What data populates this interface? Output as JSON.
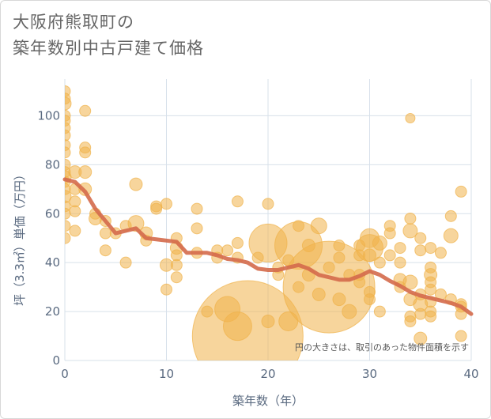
{
  "chart_data": {
    "type": "scatter",
    "title_lines": [
      "大阪府熊取町の",
      "築年数別中古戸建て価格"
    ],
    "xlabel": "築年数（年）",
    "ylabel": "坪（3.3㎡）単価（万円）",
    "xlim": [
      0,
      40
    ],
    "ylim": [
      0,
      115
    ],
    "xticks": [
      0,
      10,
      20,
      30,
      40
    ],
    "yticks": [
      0,
      20,
      40,
      60,
      80,
      100
    ],
    "grid": true,
    "annotation": "円の大きさは、取引のあった物件面積を示す",
    "colors": {
      "bubble": "#f0b24a",
      "trend": "#d46a4b",
      "grid": "#d7e0ea"
    },
    "bubbles": [
      {
        "x": 0,
        "y": 110,
        "s": 7
      },
      {
        "x": 0,
        "y": 107,
        "s": 7
      },
      {
        "x": 0,
        "y": 105,
        "s": 8
      },
      {
        "x": 0,
        "y": 100,
        "s": 7
      },
      {
        "x": 0,
        "y": 98,
        "s": 7
      },
      {
        "x": 0,
        "y": 95,
        "s": 7
      },
      {
        "x": 0,
        "y": 92,
        "s": 7
      },
      {
        "x": 0,
        "y": 88,
        "s": 7
      },
      {
        "x": 0,
        "y": 85,
        "s": 7
      },
      {
        "x": 0,
        "y": 80,
        "s": 7
      },
      {
        "x": 0,
        "y": 77,
        "s": 7
      },
      {
        "x": 0,
        "y": 75,
        "s": 8
      },
      {
        "x": 0,
        "y": 73,
        "s": 7
      },
      {
        "x": 0,
        "y": 70,
        "s": 7
      },
      {
        "x": 0,
        "y": 67,
        "s": 8
      },
      {
        "x": 0,
        "y": 63,
        "s": 7
      },
      {
        "x": 0,
        "y": 60,
        "s": 7
      },
      {
        "x": 0,
        "y": 55,
        "s": 7
      },
      {
        "x": 0,
        "y": 50,
        "s": 7
      },
      {
        "x": 1,
        "y": 77,
        "s": 8
      },
      {
        "x": 1,
        "y": 70,
        "s": 7
      },
      {
        "x": 1,
        "y": 65,
        "s": 7
      },
      {
        "x": 1,
        "y": 61,
        "s": 7
      },
      {
        "x": 1,
        "y": 53,
        "s": 7
      },
      {
        "x": 2,
        "y": 102,
        "s": 7
      },
      {
        "x": 2,
        "y": 87,
        "s": 7
      },
      {
        "x": 2,
        "y": 85,
        "s": 7
      },
      {
        "x": 2,
        "y": 77,
        "s": 8
      },
      {
        "x": 2,
        "y": 70,
        "s": 8
      },
      {
        "x": 3,
        "y": 60,
        "s": 7
      },
      {
        "x": 3,
        "y": 58,
        "s": 8
      },
      {
        "x": 4,
        "y": 57,
        "s": 7
      },
      {
        "x": 4,
        "y": 52,
        "s": 7
      },
      {
        "x": 4,
        "y": 45,
        "s": 7
      },
      {
        "x": 5,
        "y": 52,
        "s": 7
      },
      {
        "x": 6,
        "y": 55,
        "s": 7
      },
      {
        "x": 6,
        "y": 40,
        "s": 7
      },
      {
        "x": 7,
        "y": 72,
        "s": 8
      },
      {
        "x": 7,
        "y": 56,
        "s": 10
      },
      {
        "x": 8,
        "y": 52,
        "s": 8
      },
      {
        "x": 8,
        "y": 49,
        "s": 7
      },
      {
        "x": 9,
        "y": 63,
        "s": 7
      },
      {
        "x": 9,
        "y": 62,
        "s": 7
      },
      {
        "x": 10,
        "y": 64,
        "s": 7
      },
      {
        "x": 10,
        "y": 39,
        "s": 8
      },
      {
        "x": 10,
        "y": 29,
        "s": 7
      },
      {
        "x": 11,
        "y": 50,
        "s": 7
      },
      {
        "x": 11,
        "y": 46,
        "s": 8
      },
      {
        "x": 11,
        "y": 43,
        "s": 7
      },
      {
        "x": 11,
        "y": 39,
        "s": 7
      },
      {
        "x": 11,
        "y": 34,
        "s": 7
      },
      {
        "x": 13,
        "y": 62,
        "s": 7
      },
      {
        "x": 13,
        "y": 54,
        "s": 7
      },
      {
        "x": 13,
        "y": 44,
        "s": 7
      },
      {
        "x": 14,
        "y": 20,
        "s": 7
      },
      {
        "x": 15,
        "y": 45,
        "s": 7
      },
      {
        "x": 15,
        "y": 42,
        "s": 7
      },
      {
        "x": 16,
        "y": 45,
        "s": 7
      },
      {
        "x": 16,
        "y": 21,
        "s": 16
      },
      {
        "x": 17,
        "y": 65,
        "s": 7
      },
      {
        "x": 17,
        "y": 48,
        "s": 7
      },
      {
        "x": 17,
        "y": 42,
        "s": 7
      },
      {
        "x": 17,
        "y": 14,
        "s": 18
      },
      {
        "x": 18,
        "y": 10,
        "s": 70
      },
      {
        "x": 19,
        "y": 42,
        "s": 7
      },
      {
        "x": 20,
        "y": 64,
        "s": 7
      },
      {
        "x": 20,
        "y": 48,
        "s": 24
      },
      {
        "x": 20,
        "y": 16,
        "s": 8
      },
      {
        "x": 21,
        "y": 38,
        "s": 7
      },
      {
        "x": 21,
        "y": 35,
        "s": 7
      },
      {
        "x": 22,
        "y": 41,
        "s": 7
      },
      {
        "x": 22,
        "y": 16,
        "s": 12
      },
      {
        "x": 23,
        "y": 55,
        "s": 7
      },
      {
        "x": 23,
        "y": 47,
        "s": 30
      },
      {
        "x": 23,
        "y": 30,
        "s": 7
      },
      {
        "x": 24,
        "y": 47,
        "s": 8
      },
      {
        "x": 24,
        "y": 35,
        "s": 8
      },
      {
        "x": 25,
        "y": 55,
        "s": 10
      },
      {
        "x": 25,
        "y": 27,
        "s": 8
      },
      {
        "x": 26,
        "y": 30,
        "s": 58
      },
      {
        "x": 26,
        "y": 38,
        "s": 7
      },
      {
        "x": 27,
        "y": 47,
        "s": 7
      },
      {
        "x": 27,
        "y": 42,
        "s": 7
      },
      {
        "x": 27,
        "y": 25,
        "s": 8
      },
      {
        "x": 28,
        "y": 35,
        "s": 7
      },
      {
        "x": 28,
        "y": 20,
        "s": 9
      },
      {
        "x": 29,
        "y": 47,
        "s": 7
      },
      {
        "x": 29,
        "y": 43,
        "s": 7
      },
      {
        "x": 29,
        "y": 35,
        "s": 7
      },
      {
        "x": 29,
        "y": 32,
        "s": 7
      },
      {
        "x": 30,
        "y": 50,
        "s": 12
      },
      {
        "x": 30,
        "y": 46,
        "s": 17
      },
      {
        "x": 30,
        "y": 43,
        "s": 8
      },
      {
        "x": 30,
        "y": 28,
        "s": 7
      },
      {
        "x": 30,
        "y": 25,
        "s": 7
      },
      {
        "x": 31,
        "y": 48,
        "s": 9
      },
      {
        "x": 31,
        "y": 40,
        "s": 7
      },
      {
        "x": 31,
        "y": 20,
        "s": 7
      },
      {
        "x": 32,
        "y": 55,
        "s": 7
      },
      {
        "x": 32,
        "y": 52,
        "s": 7
      },
      {
        "x": 32,
        "y": 43,
        "s": 7
      },
      {
        "x": 33,
        "y": 46,
        "s": 7
      },
      {
        "x": 33,
        "y": 40,
        "s": 7
      },
      {
        "x": 33,
        "y": 33,
        "s": 8
      },
      {
        "x": 33,
        "y": 30,
        "s": 7
      },
      {
        "x": 34,
        "y": 99,
        "s": 6
      },
      {
        "x": 34,
        "y": 58,
        "s": 7
      },
      {
        "x": 34,
        "y": 53,
        "s": 9
      },
      {
        "x": 34,
        "y": 32,
        "s": 9
      },
      {
        "x": 34,
        "y": 25,
        "s": 8
      },
      {
        "x": 34,
        "y": 18,
        "s": 7
      },
      {
        "x": 34,
        "y": 16,
        "s": 7
      },
      {
        "x": 35,
        "y": 50,
        "s": 7
      },
      {
        "x": 35,
        "y": 45,
        "s": 7
      },
      {
        "x": 35,
        "y": 27,
        "s": 7
      },
      {
        "x": 35,
        "y": 23,
        "s": 9
      },
      {
        "x": 35,
        "y": 19,
        "s": 7
      },
      {
        "x": 35,
        "y": 9,
        "s": 8
      },
      {
        "x": 36,
        "y": 46,
        "s": 7
      },
      {
        "x": 36,
        "y": 38,
        "s": 7
      },
      {
        "x": 36,
        "y": 35,
        "s": 8
      },
      {
        "x": 36,
        "y": 32,
        "s": 7
      },
      {
        "x": 36,
        "y": 29,
        "s": 7
      },
      {
        "x": 36,
        "y": 24,
        "s": 7
      },
      {
        "x": 36,
        "y": 20,
        "s": 7
      },
      {
        "x": 36,
        "y": 18,
        "s": 7
      },
      {
        "x": 37,
        "y": 44,
        "s": 7
      },
      {
        "x": 37,
        "y": 27,
        "s": 7
      },
      {
        "x": 38,
        "y": 59,
        "s": 7
      },
      {
        "x": 38,
        "y": 51,
        "s": 9
      },
      {
        "x": 38,
        "y": 25,
        "s": 7
      },
      {
        "x": 39,
        "y": 69,
        "s": 7
      },
      {
        "x": 39,
        "y": 23,
        "s": 7
      },
      {
        "x": 39,
        "y": 22,
        "s": 7
      },
      {
        "x": 39,
        "y": 19,
        "s": 7
      },
      {
        "x": 39,
        "y": 10,
        "s": 7
      }
    ],
    "trend": {
      "x": [
        0,
        1,
        2,
        3,
        4,
        5,
        6,
        7,
        8,
        9,
        10,
        11,
        12,
        13,
        14,
        15,
        16,
        17,
        18,
        19,
        20,
        21,
        22,
        23,
        24,
        25,
        26,
        27,
        28,
        29,
        30,
        31,
        32,
        33,
        34,
        35,
        36,
        37,
        38,
        39,
        40
      ],
      "y": [
        74,
        73,
        69,
        62,
        57,
        52,
        53,
        54,
        50,
        49.5,
        49,
        48.5,
        44,
        44,
        44,
        43,
        41.5,
        41,
        40,
        37.5,
        37,
        37,
        38,
        39,
        37.5,
        35,
        34,
        33,
        33,
        34.5,
        36.5,
        35,
        32.5,
        30.5,
        28,
        26.5,
        25.5,
        24.5,
        23.5,
        22,
        19
      ]
    }
  }
}
